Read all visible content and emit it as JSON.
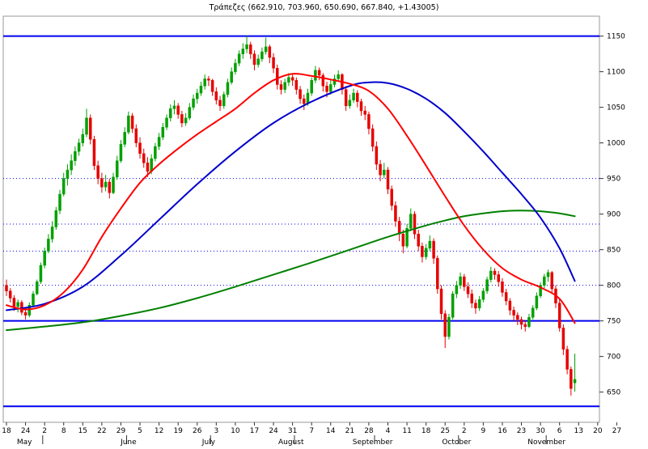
{
  "title": "Τράπεζες (662.910, 703.960, 650.690, 667.840, +1.43005)",
  "chart_data": {
    "type": "candlestick",
    "title": "Τράπεζες (662.910, 703.960, 650.690, 667.840, +1.43005)",
    "instrument": "Τράπεζες",
    "last_quote": {
      "open": 662.91,
      "high": 703.96,
      "low": 650.69,
      "close": 667.84,
      "change_pct": 1.43005
    },
    "layout": {
      "grid": "horizontal-dotted-levels",
      "legend": "none",
      "y_axis_side": "right"
    },
    "y_axis": {
      "ticks": [
        1150,
        1100,
        1050,
        1000,
        950,
        900,
        850,
        800,
        750,
        700,
        650
      ],
      "range": [
        610,
        1178
      ]
    },
    "x_axis": {
      "week_labels": [
        "18",
        "24",
        "2",
        "8",
        "15",
        "22",
        "29",
        "5",
        "12",
        "19",
        "26",
        "3",
        "10",
        "17",
        "24",
        "31",
        "7",
        "14",
        "21",
        "28",
        "4",
        "11",
        "18",
        "25",
        "2",
        "9",
        "16",
        "23",
        "30",
        "6",
        "13",
        "20",
        "27"
      ],
      "months": [
        {
          "label": "May",
          "day": 4.7
        },
        {
          "label": "June",
          "day": 32
        },
        {
          "label": "July",
          "day": 53
        },
        {
          "label": "August",
          "day": 74.6
        },
        {
          "label": "September",
          "day": 96
        },
        {
          "label": "October",
          "day": 118
        },
        {
          "label": "November",
          "day": 141.6
        }
      ],
      "month_ticks": [
        9.5,
        31.5,
        53.5,
        75.5,
        96.5,
        118.5,
        141.5
      ]
    },
    "levels": {
      "solid": [
        1150,
        750,
        630
      ],
      "dotted": [
        950,
        886,
        848,
        800
      ],
      "color": "#0000ee"
    },
    "colors": {
      "up": "#00a000",
      "down": "#e60000"
    },
    "candles": [
      [
        800,
        808,
        785,
        792
      ],
      [
        792,
        796,
        776,
        782
      ],
      [
        782,
        786,
        764,
        770
      ],
      [
        770,
        780,
        762,
        776
      ],
      [
        776,
        779,
        758,
        762
      ],
      [
        762,
        768,
        752,
        758
      ],
      [
        758,
        776,
        755,
        772
      ],
      [
        772,
        792,
        770,
        788
      ],
      [
        788,
        808,
        786,
        805
      ],
      [
        805,
        832,
        802,
        828
      ],
      [
        828,
        853,
        824,
        848
      ],
      [
        848,
        872,
        845,
        865
      ],
      [
        865,
        890,
        860,
        882
      ],
      [
        882,
        910,
        878,
        905
      ],
      [
        905,
        934,
        900,
        928
      ],
      [
        928,
        958,
        925,
        950
      ],
      [
        950,
        970,
        940,
        962
      ],
      [
        962,
        984,
        955,
        975
      ],
      [
        975,
        995,
        968,
        988
      ],
      [
        988,
        1006,
        982,
        1000
      ],
      [
        1000,
        1020,
        995,
        1012
      ],
      [
        1012,
        1048,
        1008,
        1035
      ],
      [
        1035,
        1040,
        998,
        1005
      ],
      [
        1005,
        1010,
        962,
        968
      ],
      [
        968,
        975,
        942,
        950
      ],
      [
        950,
        958,
        930,
        938
      ],
      [
        938,
        955,
        932,
        945
      ],
      [
        945,
        950,
        922,
        930
      ],
      [
        930,
        958,
        928,
        952
      ],
      [
        952,
        982,
        948,
        975
      ],
      [
        975,
        1004,
        972,
        998
      ],
      [
        998,
        1022,
        994,
        1015
      ],
      [
        1015,
        1044,
        1012,
        1038
      ],
      [
        1038,
        1042,
        1014,
        1020
      ],
      [
        1020,
        1026,
        994,
        1000
      ],
      [
        1000,
        1008,
        978,
        985
      ],
      [
        985,
        992,
        965,
        972
      ],
      [
        972,
        980,
        952,
        960
      ],
      [
        960,
        984,
        956,
        978
      ],
      [
        978,
        1000,
        974,
        995
      ],
      [
        995,
        1014,
        990,
        1008
      ],
      [
        1008,
        1028,
        1004,
        1022
      ],
      [
        1022,
        1040,
        1018,
        1035
      ],
      [
        1035,
        1054,
        1030,
        1048
      ],
      [
        1048,
        1060,
        1040,
        1052
      ],
      [
        1052,
        1056,
        1034,
        1040
      ],
      [
        1040,
        1045,
        1022,
        1028
      ],
      [
        1028,
        1042,
        1024,
        1035
      ],
      [
        1035,
        1056,
        1032,
        1050
      ],
      [
        1050,
        1068,
        1046,
        1062
      ],
      [
        1062,
        1076,
        1055,
        1070
      ],
      [
        1070,
        1086,
        1066,
        1080
      ],
      [
        1080,
        1096,
        1075,
        1090
      ],
      [
        1090,
        1094,
        1080,
        1088
      ],
      [
        1088,
        1090,
        1066,
        1072
      ],
      [
        1072,
        1078,
        1054,
        1060
      ],
      [
        1060,
        1066,
        1045,
        1052
      ],
      [
        1052,
        1072,
        1048,
        1068
      ],
      [
        1068,
        1090,
        1064,
        1085
      ],
      [
        1085,
        1106,
        1082,
        1100
      ],
      [
        1100,
        1118,
        1096,
        1112
      ],
      [
        1112,
        1130,
        1108,
        1125
      ],
      [
        1125,
        1140,
        1118,
        1132
      ],
      [
        1132,
        1150,
        1126,
        1138
      ],
      [
        1138,
        1142,
        1118,
        1125
      ],
      [
        1125,
        1130,
        1102,
        1110
      ],
      [
        1110,
        1124,
        1106,
        1118
      ],
      [
        1118,
        1134,
        1114,
        1128
      ],
      [
        1128,
        1148,
        1124,
        1135
      ],
      [
        1135,
        1138,
        1112,
        1120
      ],
      [
        1120,
        1126,
        1098,
        1105
      ],
      [
        1105,
        1110,
        1075,
        1082
      ],
      [
        1082,
        1088,
        1068,
        1075
      ],
      [
        1075,
        1090,
        1070,
        1085
      ],
      [
        1085,
        1098,
        1080,
        1092
      ],
      [
        1092,
        1096,
        1080,
        1088
      ],
      [
        1088,
        1092,
        1068,
        1075
      ],
      [
        1075,
        1080,
        1055,
        1062
      ],
      [
        1062,
        1068,
        1046,
        1055
      ],
      [
        1055,
        1076,
        1052,
        1070
      ],
      [
        1070,
        1092,
        1066,
        1088
      ],
      [
        1088,
        1108,
        1084,
        1102
      ],
      [
        1102,
        1106,
        1088,
        1095
      ],
      [
        1095,
        1098,
        1072,
        1080
      ],
      [
        1080,
        1086,
        1064,
        1072
      ],
      [
        1072,
        1088,
        1068,
        1082
      ],
      [
        1082,
        1096,
        1078,
        1090
      ],
      [
        1090,
        1102,
        1086,
        1096
      ],
      [
        1096,
        1098,
        1068,
        1075
      ],
      [
        1075,
        1080,
        1045,
        1052
      ],
      [
        1052,
        1068,
        1048,
        1060
      ],
      [
        1060,
        1076,
        1056,
        1070
      ],
      [
        1070,
        1074,
        1050,
        1058
      ],
      [
        1058,
        1062,
        1038,
        1045
      ],
      [
        1045,
        1052,
        1032,
        1040
      ],
      [
        1040,
        1044,
        1012,
        1020
      ],
      [
        1020,
        1026,
        988,
        995
      ],
      [
        995,
        1002,
        962,
        970
      ],
      [
        970,
        976,
        946,
        955
      ],
      [
        955,
        972,
        950,
        962
      ],
      [
        962,
        966,
        928,
        935
      ],
      [
        935,
        940,
        905,
        912
      ],
      [
        912,
        918,
        882,
        890
      ],
      [
        890,
        896,
        862,
        872
      ],
      [
        872,
        878,
        845,
        855
      ],
      [
        855,
        886,
        852,
        880
      ],
      [
        880,
        908,
        876,
        900
      ],
      [
        900,
        904,
        865,
        872
      ],
      [
        872,
        878,
        848,
        855
      ],
      [
        855,
        860,
        832,
        840
      ],
      [
        840,
        858,
        836,
        852
      ],
      [
        852,
        870,
        848,
        862
      ],
      [
        862,
        866,
        830,
        838
      ],
      [
        838,
        842,
        788,
        795
      ],
      [
        795,
        800,
        752,
        760
      ],
      [
        760,
        765,
        712,
        728
      ],
      [
        728,
        760,
        724,
        755
      ],
      [
        755,
        792,
        752,
        788
      ],
      [
        788,
        806,
        782,
        800
      ],
      [
        800,
        818,
        795,
        812
      ],
      [
        812,
        816,
        792,
        798
      ],
      [
        798,
        804,
        782,
        788
      ],
      [
        788,
        794,
        768,
        775
      ],
      [
        775,
        780,
        760,
        768
      ],
      [
        768,
        785,
        764,
        780
      ],
      [
        780,
        796,
        776,
        792
      ],
      [
        792,
        812,
        788,
        808
      ],
      [
        808,
        826,
        804,
        820
      ],
      [
        820,
        824,
        808,
        815
      ],
      [
        815,
        820,
        798,
        805
      ],
      [
        805,
        810,
        784,
        790
      ],
      [
        790,
        795,
        772,
        778
      ],
      [
        778,
        782,
        758,
        765
      ],
      [
        765,
        770,
        750,
        758
      ],
      [
        758,
        762,
        744,
        752
      ],
      [
        752,
        756,
        738,
        745
      ],
      [
        745,
        750,
        735,
        742
      ],
      [
        742,
        760,
        740,
        755
      ],
      [
        755,
        772,
        752,
        768
      ],
      [
        768,
        790,
        765,
        785
      ],
      [
        785,
        804,
        782,
        800
      ],
      [
        800,
        816,
        796,
        812
      ],
      [
        812,
        822,
        805,
        818
      ],
      [
        818,
        820,
        788,
        795
      ],
      [
        795,
        800,
        768,
        775
      ],
      [
        775,
        780,
        735,
        740
      ],
      [
        740,
        745,
        702,
        710
      ],
      [
        710,
        715,
        675,
        682
      ],
      [
        682,
        686,
        645,
        655
      ],
      [
        662.91,
        703.96,
        650.69,
        667.84
      ]
    ],
    "moving_averages": [
      {
        "name": "ma-slow-green",
        "color": "#008000",
        "width": 2,
        "points": [
          [
            0,
            737
          ],
          [
            10,
            742
          ],
          [
            20,
            748
          ],
          [
            30,
            757
          ],
          [
            40,
            768
          ],
          [
            50,
            782
          ],
          [
            60,
            798
          ],
          [
            70,
            815
          ],
          [
            80,
            832
          ],
          [
            90,
            850
          ],
          [
            100,
            868
          ],
          [
            110,
            884
          ],
          [
            115,
            891
          ],
          [
            120,
            897
          ],
          [
            125,
            901
          ],
          [
            130,
            904
          ],
          [
            135,
            905
          ],
          [
            140,
            904
          ],
          [
            145,
            901
          ],
          [
            149,
            897
          ]
        ]
      },
      {
        "name": "ma-medium-blue",
        "color": "#0000cc",
        "width": 2,
        "points": [
          [
            0,
            765
          ],
          [
            10,
            774
          ],
          [
            20,
            798
          ],
          [
            30,
            842
          ],
          [
            40,
            892
          ],
          [
            50,
            942
          ],
          [
            60,
            988
          ],
          [
            70,
            1028
          ],
          [
            80,
            1058
          ],
          [
            90,
            1080
          ],
          [
            95,
            1085
          ],
          [
            100,
            1084
          ],
          [
            105,
            1076
          ],
          [
            110,
            1062
          ],
          [
            115,
            1042
          ],
          [
            120,
            1016
          ],
          [
            125,
            988
          ],
          [
            130,
            958
          ],
          [
            135,
            928
          ],
          [
            140,
            895
          ],
          [
            145,
            852
          ],
          [
            149,
            806
          ]
        ]
      },
      {
        "name": "ma-fast-red",
        "color": "#ff0000",
        "width": 2,
        "points": [
          [
            0,
            772
          ],
          [
            5,
            766
          ],
          [
            10,
            772
          ],
          [
            15,
            790
          ],
          [
            20,
            822
          ],
          [
            25,
            868
          ],
          [
            30,
            908
          ],
          [
            35,
            944
          ],
          [
            40,
            970
          ],
          [
            45,
            992
          ],
          [
            50,
            1012
          ],
          [
            55,
            1030
          ],
          [
            60,
            1048
          ],
          [
            65,
            1070
          ],
          [
            70,
            1088
          ],
          [
            75,
            1097
          ],
          [
            80,
            1094
          ],
          [
            85,
            1089
          ],
          [
            90,
            1083
          ],
          [
            95,
            1073
          ],
          [
            100,
            1048
          ],
          [
            105,
            1010
          ],
          [
            110,
            968
          ],
          [
            115,
            925
          ],
          [
            120,
            884
          ],
          [
            125,
            850
          ],
          [
            130,
            824
          ],
          [
            135,
            808
          ],
          [
            140,
            797
          ],
          [
            145,
            781
          ],
          [
            149,
            747
          ]
        ]
      }
    ]
  }
}
